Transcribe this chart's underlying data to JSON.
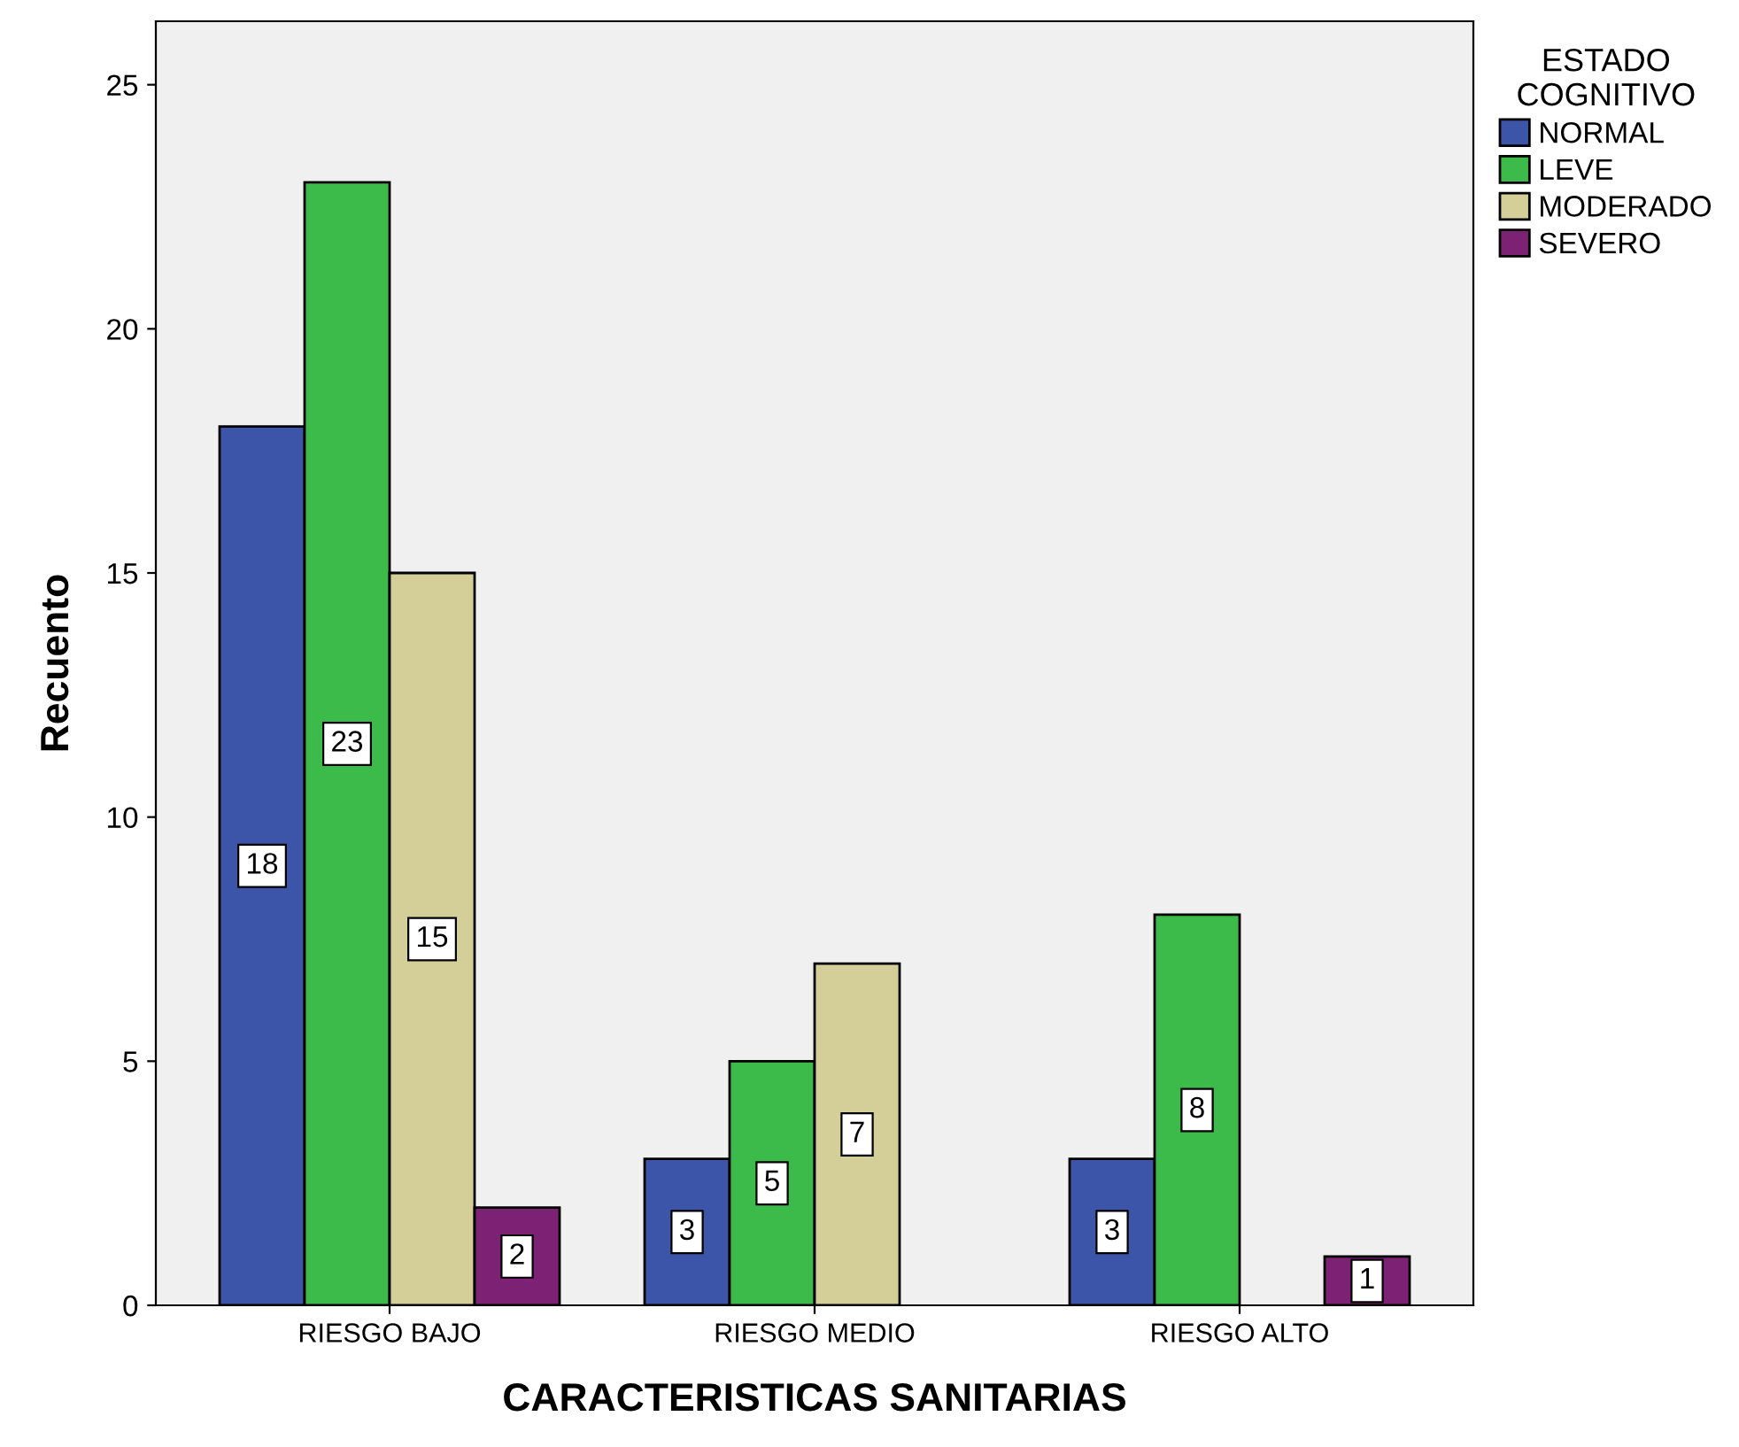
{
  "chart_data": {
    "type": "bar",
    "xlabel": "CARACTERISTICAS SANITARIAS",
    "ylabel": "Recuento",
    "legend_title": "ESTADO\nCOGNITIVO",
    "categories": [
      "RIESGO BAJO",
      "RIESGO MEDIO",
      "RIESGO ALTO"
    ],
    "series": [
      {
        "name": "NORMAL",
        "color": "#3d55a8",
        "values": [
          18,
          3,
          3
        ]
      },
      {
        "name": "LEVE",
        "color": "#3cba4a",
        "values": [
          23,
          5,
          8
        ]
      },
      {
        "name": "MODERADO",
        "color": "#d4cf99",
        "values": [
          15,
          7,
          null
        ]
      },
      {
        "name": "SEVERO",
        "color": "#7c2173",
        "values": [
          2,
          null,
          1
        ]
      }
    ],
    "ylim": [
      0,
      26.3
    ],
    "yticks": [
      0,
      5,
      10,
      15,
      20,
      25
    ],
    "grid": false,
    "legend": "top right",
    "data_labels": true
  }
}
